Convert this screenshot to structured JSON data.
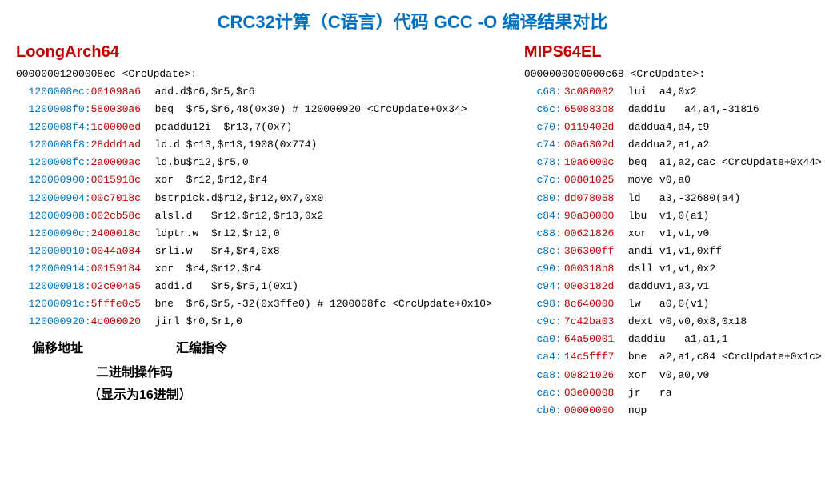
{
  "title": "CRC32计算（C语言）代码 GCC -O 编译结果对比",
  "title_color": "#0070c0",
  "left": {
    "arch": "LoongArch64",
    "arch_color": "#c00000",
    "func_header": "00000001200008ec <CrcUpdate>:",
    "addr_color": "#0070c0",
    "opcode_color": "#c00000",
    "instr_color": "#000000",
    "lines": [
      {
        "addr": "1200008ec:",
        "opcode": "001098a6",
        "instr": "add.d$r6,$r5,$r6"
      },
      {
        "addr": "1200008f0:",
        "opcode": "580030a6",
        "instr": "beq  $r5,$r6,48(0x30) # 120000920 <CrcUpdate+0x34>"
      },
      {
        "addr": "1200008f4:",
        "opcode": "1c0000ed",
        "instr": "pcaddu12i  $r13,7(0x7)"
      },
      {
        "addr": "1200008f8:",
        "opcode": "28ddd1ad",
        "instr": "ld.d $r13,$r13,1908(0x774)"
      },
      {
        "addr": "1200008fc:",
        "opcode": "2a0000ac",
        "instr": "ld.bu$r12,$r5,0"
      },
      {
        "addr": "120000900:",
        "opcode": "0015918c",
        "instr": "xor  $r12,$r12,$r4"
      },
      {
        "addr": "120000904:",
        "opcode": "00c7018c",
        "instr": "bstrpick.d$r12,$r12,0x7,0x0"
      },
      {
        "addr": "120000908:",
        "opcode": "002cb58c",
        "instr": "alsl.d   $r12,$r12,$r13,0x2"
      },
      {
        "addr": "12000090c:",
        "opcode": "2400018c",
        "instr": "ldptr.w  $r12,$r12,0"
      },
      {
        "addr": "120000910:",
        "opcode": "0044a084",
        "instr": "srli.w   $r4,$r4,0x8"
      },
      {
        "addr": "120000914:",
        "opcode": "00159184",
        "instr": "xor  $r4,$r12,$r4"
      },
      {
        "addr": "120000918:",
        "opcode": "02c004a5",
        "instr": "addi.d   $r5,$r5,1(0x1)"
      },
      {
        "addr": "12000091c:",
        "opcode": "5fffe0c5",
        "instr": "bne  $r6,$r5,-32(0x3ffe0) # 1200008fc <CrcUpdate+0x10>"
      },
      {
        "addr": "120000920:",
        "opcode": "4c000020",
        "instr": "jirl $r0,$r1,0"
      }
    ],
    "label_addr": "偏移地址",
    "label_instr": "汇编指令",
    "label_opcode": "二进制操作码",
    "label_hex": "（显示为16进制）"
  },
  "right": {
    "arch": "MIPS64EL",
    "arch_color": "#c00000",
    "func_header": "0000000000000c68 <CrcUpdate>:",
    "addr_color": "#0070c0",
    "opcode_color": "#c00000",
    "instr_color": "#000000",
    "lines": [
      {
        "addr": "c68:",
        "opcode": "3c080002",
        "instr": "lui  a4,0x2"
      },
      {
        "addr": "c6c:",
        "opcode": "650883b8",
        "instr": "daddiu   a4,a4,-31816"
      },
      {
        "addr": "c70:",
        "opcode": "0119402d",
        "instr": "daddua4,a4,t9"
      },
      {
        "addr": "c74:",
        "opcode": "00a6302d",
        "instr": "daddua2,a1,a2"
      },
      {
        "addr": "c78:",
        "opcode": "10a6000c",
        "instr": "beq  a1,a2,cac <CrcUpdate+0x44>"
      },
      {
        "addr": "c7c:",
        "opcode": "00801025",
        "instr": "move v0,a0"
      },
      {
        "addr": "c80:",
        "opcode": "dd078058",
        "instr": "ld   a3,-32680(a4)"
      },
      {
        "addr": "c84:",
        "opcode": "90a30000",
        "instr": "lbu  v1,0(a1)"
      },
      {
        "addr": "c88:",
        "opcode": "00621826",
        "instr": "xor  v1,v1,v0"
      },
      {
        "addr": "c8c:",
        "opcode": "306300ff",
        "instr": "andi v1,v1,0xff"
      },
      {
        "addr": "c90:",
        "opcode": "000318b8",
        "instr": "dsll v1,v1,0x2"
      },
      {
        "addr": "c94:",
        "opcode": "00e3182d",
        "instr": "dadduv1,a3,v1"
      },
      {
        "addr": "c98:",
        "opcode": "8c640000",
        "instr": "lw   a0,0(v1)"
      },
      {
        "addr": "c9c:",
        "opcode": "7c42ba03",
        "instr": "dext v0,v0,0x8,0x18"
      },
      {
        "addr": "ca0:",
        "opcode": "64a50001",
        "instr": "daddiu   a1,a1,1"
      },
      {
        "addr": "ca4:",
        "opcode": "14c5fff7",
        "instr": "bne  a2,a1,c84 <CrcUpdate+0x1c>"
      },
      {
        "addr": "ca8:",
        "opcode": "00821026",
        "instr": "xor  v0,a0,v0"
      },
      {
        "addr": "cac:",
        "opcode": "03e00008",
        "instr": "jr   ra"
      },
      {
        "addr": "cb0:",
        "opcode": "00000000",
        "instr": "nop"
      }
    ]
  }
}
